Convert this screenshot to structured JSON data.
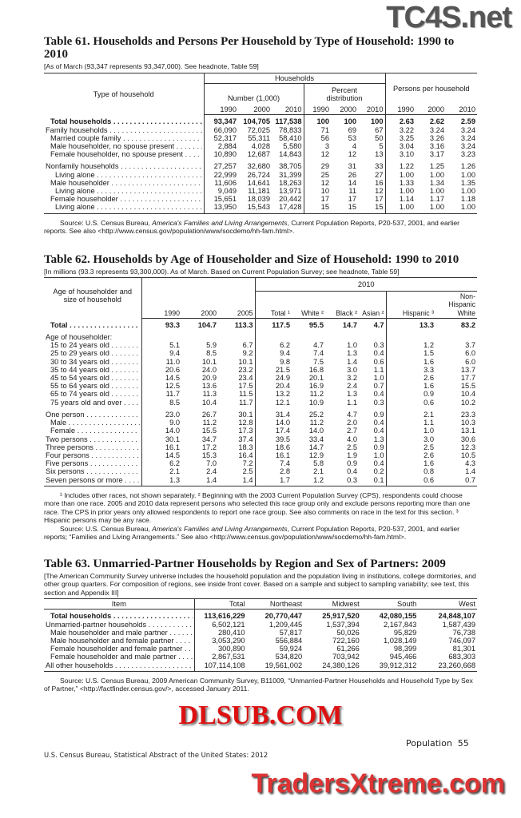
{
  "watermarks": {
    "top": "TC4S.net",
    "middle": "DLSUB.COM",
    "bottom": "TradersXtreme.com"
  },
  "table61": {
    "title": "Table 61. Households and Persons Per Household by Type of Household: 1990 to 2010",
    "headnote": "[As of March (93,347 represents 93,347,000). See headnote, Table 59]",
    "headers": {
      "stub": "Type of household",
      "households": "Households",
      "number": "Number (1,000)",
      "percent": "Percent distribution",
      "persons": "Persons per household",
      "years": [
        "1990",
        "2000",
        "2010"
      ]
    },
    "rows": [
      {
        "label": "Total households",
        "bold": true,
        "indent": 1,
        "values": [
          "93,347",
          "104,705",
          "117,538",
          "100",
          "100",
          "100",
          "2.63",
          "2.62",
          "2.59"
        ]
      },
      {
        "label": "Family households",
        "indent": 0,
        "values": [
          "66,090",
          "72,025",
          "78,833",
          "71",
          "69",
          "67",
          "3.22",
          "3.24",
          "3.24"
        ]
      },
      {
        "label": "Married couple family",
        "indent": 1,
        "values": [
          "52,317",
          "55,311",
          "58,410",
          "56",
          "53",
          "50",
          "3.25",
          "3.26",
          "3.24"
        ]
      },
      {
        "label": "Male householder, no spouse present",
        "indent": 1,
        "values": [
          "2,884",
          "4,028",
          "5,580",
          "3",
          "4",
          "5",
          "3.04",
          "3.16",
          "3.24"
        ]
      },
      {
        "label": "Female householder, no spouse present",
        "indent": 1,
        "values": [
          "10,890",
          "12,687",
          "14,843",
          "12",
          "12",
          "13",
          "3.10",
          "3.17",
          "3.23"
        ]
      },
      {
        "label": "Nonfamily households",
        "indent": 0,
        "gap": true,
        "values": [
          "27,257",
          "32,680",
          "38,705",
          "29",
          "31",
          "33",
          "1.22",
          "1.25",
          "1.26"
        ]
      },
      {
        "label": "Living alone",
        "indent": 2,
        "values": [
          "22,999",
          "26,724",
          "31,399",
          "25",
          "26",
          "27",
          "1.00",
          "1.00",
          "1.00"
        ]
      },
      {
        "label": "Male householder",
        "indent": 1,
        "values": [
          "11,606",
          "14,641",
          "18,263",
          "12",
          "14",
          "16",
          "1.33",
          "1.34",
          "1.35"
        ]
      },
      {
        "label": "Living alone",
        "indent": 2,
        "values": [
          "9,049",
          "11,181",
          "13,971",
          "10",
          "11",
          "12",
          "1.00",
          "1.00",
          "1.00"
        ]
      },
      {
        "label": "Female householder",
        "indent": 1,
        "values": [
          "15,651",
          "18,039",
          "20,442",
          "17",
          "17",
          "17",
          "1.14",
          "1.17",
          "1.18"
        ]
      },
      {
        "label": "Living alone",
        "indent": 2,
        "values": [
          "13,950",
          "15,543",
          "17,428",
          "15",
          "15",
          "15",
          "1.00",
          "1.00",
          "1.00"
        ]
      }
    ],
    "source_prefix": "Source: U.S. Census Bureau, ",
    "source_title": "America's Families and Living Arrangements",
    "source_suffix": ", Current Population Reports, P20-537, 2001, and earlier reports. See also <http://www.census.gov/population/www/socdemo/hh-fam.html>."
  },
  "table62": {
    "title": "Table 62. Households by Age of Householder and Size of Household: 1990 to 2010",
    "headnote": "[In millions (93.3 represents 93,300,000). As of March. Based on Current Population Survey; see headnote, Table 59]",
    "headers": {
      "stub": "Age of householder and size of household",
      "group2010": "2010",
      "cols": [
        "1990",
        "2000",
        "2005",
        "Total ¹",
        "White ²",
        "Black ²",
        "Asian ²",
        "Hispanic ³",
        "Non-Hispanic White"
      ]
    },
    "rows": [
      {
        "label": "Total",
        "bold": true,
        "indent": 1,
        "values": [
          "93.3",
          "104.7",
          "113.3",
          "117.5",
          "95.5",
          "14.7",
          "4.7",
          "13.3",
          "83.2"
        ]
      },
      {
        "label": "Age of householder:",
        "indent": 0,
        "gap": true,
        "nolead": true,
        "values": [
          "",
          "",
          "",
          "",
          "",
          "",
          "",
          "",
          ""
        ]
      },
      {
        "label": "15 to 24 years old",
        "indent": 1,
        "values": [
          "5.1",
          "5.9",
          "6.7",
          "6.2",
          "4.7",
          "1.0",
          "0.3",
          "1.2",
          "3.7"
        ]
      },
      {
        "label": "25 to 29 years old",
        "indent": 1,
        "values": [
          "9.4",
          "8.5",
          "9.2",
          "9.4",
          "7.4",
          "1.3",
          "0.4",
          "1.5",
          "6.0"
        ]
      },
      {
        "label": "30 to 34 years old",
        "indent": 1,
        "values": [
          "11.0",
          "10.1",
          "10.1",
          "9.8",
          "7.5",
          "1.4",
          "0.6",
          "1.6",
          "6.0"
        ]
      },
      {
        "label": "35 to 44 years old",
        "indent": 1,
        "values": [
          "20.6",
          "24.0",
          "23.2",
          "21.5",
          "16.8",
          "3.0",
          "1.1",
          "3.3",
          "13.7"
        ]
      },
      {
        "label": "45 to 54 years old",
        "indent": 1,
        "values": [
          "14.5",
          "20.9",
          "23.4",
          "24.9",
          "20.1",
          "3.2",
          "1.0",
          "2.6",
          "17.7"
        ]
      },
      {
        "label": "55 to 64 years old",
        "indent": 1,
        "values": [
          "12.5",
          "13.6",
          "17.5",
          "20.4",
          "16.9",
          "2.4",
          "0.7",
          "1.6",
          "15.5"
        ]
      },
      {
        "label": "65 to 74 years old",
        "indent": 1,
        "values": [
          "11.7",
          "11.3",
          "11.5",
          "13.2",
          "11.2",
          "1.3",
          "0.4",
          "0.9",
          "10.4"
        ]
      },
      {
        "label": "75 years old and over",
        "indent": 1,
        "values": [
          "8.5",
          "10.4",
          "11.7",
          "12.1",
          "10.9",
          "1.1",
          "0.3",
          "0.6",
          "10.2"
        ]
      },
      {
        "label": "One person",
        "indent": 0,
        "gap": true,
        "values": [
          "23.0",
          "26.7",
          "30.1",
          "31.4",
          "25.2",
          "4.7",
          "0.9",
          "2.1",
          "23.3"
        ]
      },
      {
        "label": "Male",
        "indent": 1,
        "values": [
          "9.0",
          "11.2",
          "12.8",
          "14.0",
          "11.2",
          "2.0",
          "0.4",
          "1.1",
          "10.3"
        ]
      },
      {
        "label": "Female",
        "indent": 1,
        "values": [
          "14.0",
          "15.5",
          "17.3",
          "17.4",
          "14.0",
          "2.7",
          "0.4",
          "1.0",
          "13.1"
        ]
      },
      {
        "label": "Two persons",
        "indent": 0,
        "values": [
          "30.1",
          "34.7",
          "37.4",
          "39.5",
          "33.4",
          "4.0",
          "1.3",
          "3.0",
          "30.6"
        ]
      },
      {
        "label": "Three persons",
        "indent": 0,
        "values": [
          "16.1",
          "17.2",
          "18.3",
          "18.6",
          "14.7",
          "2.5",
          "0.9",
          "2.5",
          "12.3"
        ]
      },
      {
        "label": "Four persons",
        "indent": 0,
        "values": [
          "14.5",
          "15.3",
          "16.4",
          "16.1",
          "12.9",
          "1.9",
          "1.0",
          "2.6",
          "10.5"
        ]
      },
      {
        "label": "Five persons",
        "indent": 0,
        "values": [
          "6.2",
          "7.0",
          "7.2",
          "7.4",
          "5.8",
          "0.9",
          "0.4",
          "1.6",
          "4.3"
        ]
      },
      {
        "label": "Six persons",
        "indent": 0,
        "values": [
          "2.1",
          "2.4",
          "2.5",
          "2.8",
          "2.1",
          "0.4",
          "0.2",
          "0.8",
          "1.4"
        ]
      },
      {
        "label": "Seven persons or more",
        "indent": 0,
        "values": [
          "1.3",
          "1.4",
          "1.4",
          "1.7",
          "1.2",
          "0.3",
          "0.1",
          "0.6",
          "0.7"
        ]
      }
    ],
    "footnotes": "¹ Includes other races, not shown separately. ² Beginning with the 2003 Current Population Survey (CPS), respondents could choose more than one race. 2005 and 2010 data represent persons who selected this race group only and exclude persons reporting more than one race. The CPS in prior years only allowed respondents to report one race group. See also comments on race in the text for this section. ³ Hispanic persons may be any race.",
    "source_prefix": "Source: U.S. Census Bureau, ",
    "source_title": "America's Families and Living Arrangements",
    "source_suffix": ", Current Population Reports, P20-537, 2001, and earlier reports; “Families and Living Arrangements.” See also <http://www.census.gov/population/www/socdemo/hh-fam.html>."
  },
  "table63": {
    "title": "Table 63. Unmarried-Partner Households by Region and Sex of Partners: 2009",
    "headnote": "[The American Community Survey universe includes the household population and the population living in institutions, college dormitories, and other group quarters. For composition of regions, see inside front cover. Based on a sample and subject to sampling variability; see text, this section and Appendix III]",
    "headers": [
      "Item",
      "Total",
      "Northeast",
      "Midwest",
      "South",
      "West"
    ],
    "rows": [
      {
        "label": "Total households",
        "bold": true,
        "indent": 1,
        "values": [
          "113,616,229",
          "20,770,447",
          "25,917,520",
          "42,080,155",
          "24,848,107"
        ]
      },
      {
        "label": "Unmarried-partner households",
        "indent": 0,
        "values": [
          "6,502,121",
          "1,209,445",
          "1,537,394",
          "2,167,843",
          "1,587,439"
        ]
      },
      {
        "label": "Male householder and male partner",
        "indent": 1,
        "values": [
          "280,410",
          "57,817",
          "50,026",
          "95,829",
          "76,738"
        ]
      },
      {
        "label": "Male householder and female partner",
        "indent": 1,
        "values": [
          "3,053,290",
          "556,884",
          "722,160",
          "1,028,149",
          "746,097"
        ]
      },
      {
        "label": "Female householder and female partner",
        "indent": 1,
        "values": [
          "300,890",
          "59,924",
          "61,266",
          "98,399",
          "81,301"
        ]
      },
      {
        "label": "Female householder and male partner",
        "indent": 1,
        "values": [
          "2,867,531",
          "534,820",
          "703,942",
          "945,466",
          "683,303"
        ]
      },
      {
        "label": "All other households",
        "indent": 0,
        "values": [
          "107,114,108",
          "19,561,002",
          "24,380,126",
          "39,912,312",
          "23,260,668"
        ]
      }
    ],
    "source": "Source: U.S. Census Bureau, 2009 American Community Survey, B11009, “Unmarried-Partner Households and Household Type by Sex of Partner,” <http://factfinder.census.gov/>, accessed January 2011."
  },
  "footer": {
    "publication": "U.S. Census Bureau, Statistical Abstract of the United States: 2012",
    "section": "Population",
    "page": "55"
  }
}
